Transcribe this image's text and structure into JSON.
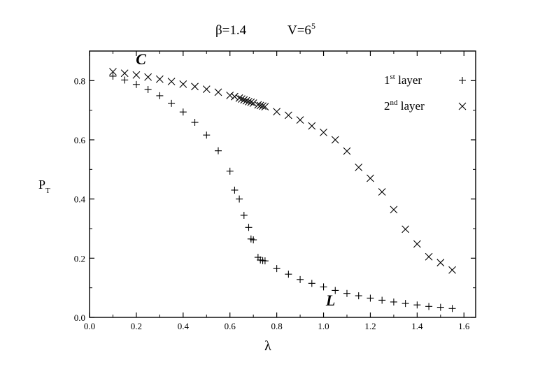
{
  "chart_data": {
    "type": "scatter",
    "title_parts": {
      "beta": "β=1.4",
      "volume_base": "V=6",
      "volume_exp": "5"
    },
    "xlabel": "λ",
    "ylabel_main": "P",
    "ylabel_sub": "T",
    "xlim": [
      0.0,
      1.65
    ],
    "ylim": [
      0.0,
      0.9
    ],
    "x_ticks": [
      {
        "v": 0.0,
        "label": "0.0"
      },
      {
        "v": 0.2,
        "label": "0.2"
      },
      {
        "v": 0.4,
        "label": "0.4"
      },
      {
        "v": 0.6,
        "label": "0.6"
      },
      {
        "v": 0.8,
        "label": "0.8"
      },
      {
        "v": 1.0,
        "label": "1.0"
      },
      {
        "v": 1.2,
        "label": "1.2"
      },
      {
        "v": 1.4,
        "label": "1.4"
      },
      {
        "v": 1.6,
        "label": "1.6"
      }
    ],
    "y_ticks": [
      {
        "v": 0.0,
        "label": "0.0"
      },
      {
        "v": 0.2,
        "label": "0.2"
      },
      {
        "v": 0.4,
        "label": "0.4"
      },
      {
        "v": 0.6,
        "label": "0.6"
      },
      {
        "v": 0.8,
        "label": "0.8"
      }
    ],
    "grid": false,
    "legend_position": "top-right",
    "annotations": [
      {
        "text": "C",
        "x": 0.22,
        "y": 0.855
      },
      {
        "text": "L",
        "x": 1.03,
        "y": 0.04
      }
    ],
    "series": [
      {
        "name": "1st layer",
        "legend_base": "1",
        "legend_sup": "st",
        "legend_rest": " layer",
        "marker": "plus",
        "points": [
          [
            0.1,
            0.815
          ],
          [
            0.15,
            0.802
          ],
          [
            0.2,
            0.787
          ],
          [
            0.25,
            0.77
          ],
          [
            0.3,
            0.749
          ],
          [
            0.35,
            0.723
          ],
          [
            0.4,
            0.694
          ],
          [
            0.45,
            0.659
          ],
          [
            0.5,
            0.616
          ],
          [
            0.55,
            0.563
          ],
          [
            0.6,
            0.494
          ],
          [
            0.62,
            0.43
          ],
          [
            0.64,
            0.4
          ],
          [
            0.66,
            0.345
          ],
          [
            0.68,
            0.304
          ],
          [
            0.69,
            0.265
          ],
          [
            0.7,
            0.262
          ],
          [
            0.72,
            0.203
          ],
          [
            0.73,
            0.194
          ],
          [
            0.74,
            0.192
          ],
          [
            0.75,
            0.191
          ],
          [
            0.8,
            0.165
          ],
          [
            0.85,
            0.146
          ],
          [
            0.9,
            0.128
          ],
          [
            0.95,
            0.115
          ],
          [
            1.0,
            0.103
          ],
          [
            1.05,
            0.091
          ],
          [
            1.1,
            0.081
          ],
          [
            1.15,
            0.073
          ],
          [
            1.2,
            0.065
          ],
          [
            1.25,
            0.058
          ],
          [
            1.3,
            0.052
          ],
          [
            1.35,
            0.047
          ],
          [
            1.4,
            0.042
          ],
          [
            1.45,
            0.037
          ],
          [
            1.5,
            0.034
          ],
          [
            1.55,
            0.03
          ]
        ]
      },
      {
        "name": "2nd layer",
        "legend_base": "2",
        "legend_sup": "nd",
        "legend_rest": " layer",
        "marker": "cross",
        "points": [
          [
            0.1,
            0.83
          ],
          [
            0.15,
            0.825
          ],
          [
            0.2,
            0.819
          ],
          [
            0.25,
            0.812
          ],
          [
            0.3,
            0.805
          ],
          [
            0.35,
            0.797
          ],
          [
            0.4,
            0.788
          ],
          [
            0.45,
            0.78
          ],
          [
            0.5,
            0.771
          ],
          [
            0.55,
            0.761
          ],
          [
            0.6,
            0.75
          ],
          [
            0.62,
            0.746
          ],
          [
            0.64,
            0.741
          ],
          [
            0.65,
            0.738
          ],
          [
            0.66,
            0.735
          ],
          [
            0.67,
            0.732
          ],
          [
            0.68,
            0.729
          ],
          [
            0.69,
            0.727
          ],
          [
            0.7,
            0.724
          ],
          [
            0.72,
            0.718
          ],
          [
            0.73,
            0.716
          ],
          [
            0.74,
            0.714
          ],
          [
            0.75,
            0.712
          ],
          [
            0.8,
            0.695
          ],
          [
            0.85,
            0.683
          ],
          [
            0.9,
            0.667
          ],
          [
            0.95,
            0.647
          ],
          [
            1.0,
            0.625
          ],
          [
            1.05,
            0.6
          ],
          [
            1.1,
            0.562
          ],
          [
            1.15,
            0.507
          ],
          [
            1.2,
            0.47
          ],
          [
            1.25,
            0.424
          ],
          [
            1.3,
            0.364
          ],
          [
            1.35,
            0.298
          ],
          [
            1.4,
            0.248
          ],
          [
            1.45,
            0.205
          ],
          [
            1.5,
            0.185
          ],
          [
            1.55,
            0.16
          ]
        ]
      }
    ]
  }
}
